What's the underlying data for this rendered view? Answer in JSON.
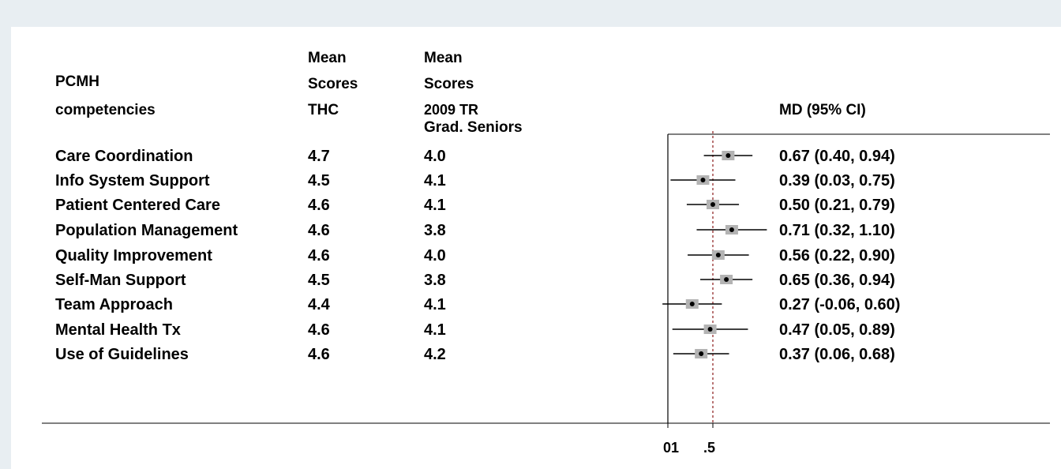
{
  "headers": {
    "competency": [
      "PCMH",
      "competencies"
    ],
    "thc": [
      "Mean",
      "Scores",
      "THC"
    ],
    "tr": [
      "Mean",
      "Scores",
      "2009 TR",
      "Grad. Seniors"
    ],
    "md": "MD (95% CI)"
  },
  "rows": [
    {
      "label": "Care Coordination",
      "thc": "4.7",
      "tr": "4.0",
      "md_text": "0.67 (0.40, 0.94)"
    },
    {
      "label": "Info System Support",
      "thc": "4.5",
      "tr": "4.1",
      "md_text": "0.39 (0.03, 0.75)"
    },
    {
      "label": "Patient Centered Care",
      "thc": "4.6",
      "tr": "4.1",
      "md_text": "0.50 (0.21, 0.79)"
    },
    {
      "label": "Population Management",
      "thc": "4.6",
      "tr": "3.8",
      "md_text": "0.71 (0.32, 1.10)"
    },
    {
      "label": "Quality Improvement",
      "thc": "4.6",
      "tr": "4.0",
      "md_text": "0.56 (0.22, 0.90)"
    },
    {
      "label": "Self-Man Support",
      "thc": "4.5",
      "tr": "3.8",
      "md_text": "0.65 (0.36, 0.94)"
    },
    {
      "label": "Team Approach",
      "thc": "4.4",
      "tr": "4.1",
      "md_text": "0.27 (-0.06, 0.60)"
    },
    {
      "label": "Mental Health Tx",
      "thc": "4.6",
      "tr": "4.1",
      "md_text": "0.47 (0.05, 0.89)"
    },
    {
      "label": "Use of Guidelines",
      "thc": "4.6",
      "tr": "4.2",
      "md_text": "0.37 (0.06, 0.68)"
    }
  ],
  "chart_data": {
    "type": "forest",
    "x_tick_labels": [
      "0",
      "1",
      ".5"
    ],
    "reference_lines": {
      "null_effect": 0,
      "overall_effect": 0.5
    },
    "series": [
      {
        "values": [
          {
            "category": "Care Coordination",
            "md": 0.67,
            "lo": 0.4,
            "hi": 0.94
          },
          {
            "category": "Info System Support",
            "md": 0.39,
            "lo": 0.03,
            "hi": 0.75
          },
          {
            "category": "Patient Centered Care",
            "md": 0.5,
            "lo": 0.21,
            "hi": 0.79
          },
          {
            "category": "Population Management",
            "md": 0.71,
            "lo": 0.32,
            "hi": 1.1
          },
          {
            "category": "Quality Improvement",
            "md": 0.56,
            "lo": 0.22,
            "hi": 0.9
          },
          {
            "category": "Self-Man Support",
            "md": 0.65,
            "lo": 0.36,
            "hi": 0.94
          },
          {
            "category": "Team Approach",
            "md": 0.27,
            "lo": -0.06,
            "hi": 0.6
          },
          {
            "category": "Mental Health Tx",
            "md": 0.47,
            "lo": 0.05,
            "hi": 0.89
          },
          {
            "category": "Use of Guidelines",
            "md": 0.37,
            "lo": 0.06,
            "hi": 0.68
          }
        ]
      }
    ],
    "colors": {
      "box": "#b3b3b3",
      "line": "#000000",
      "ref_line": "#8b1a1a"
    }
  }
}
